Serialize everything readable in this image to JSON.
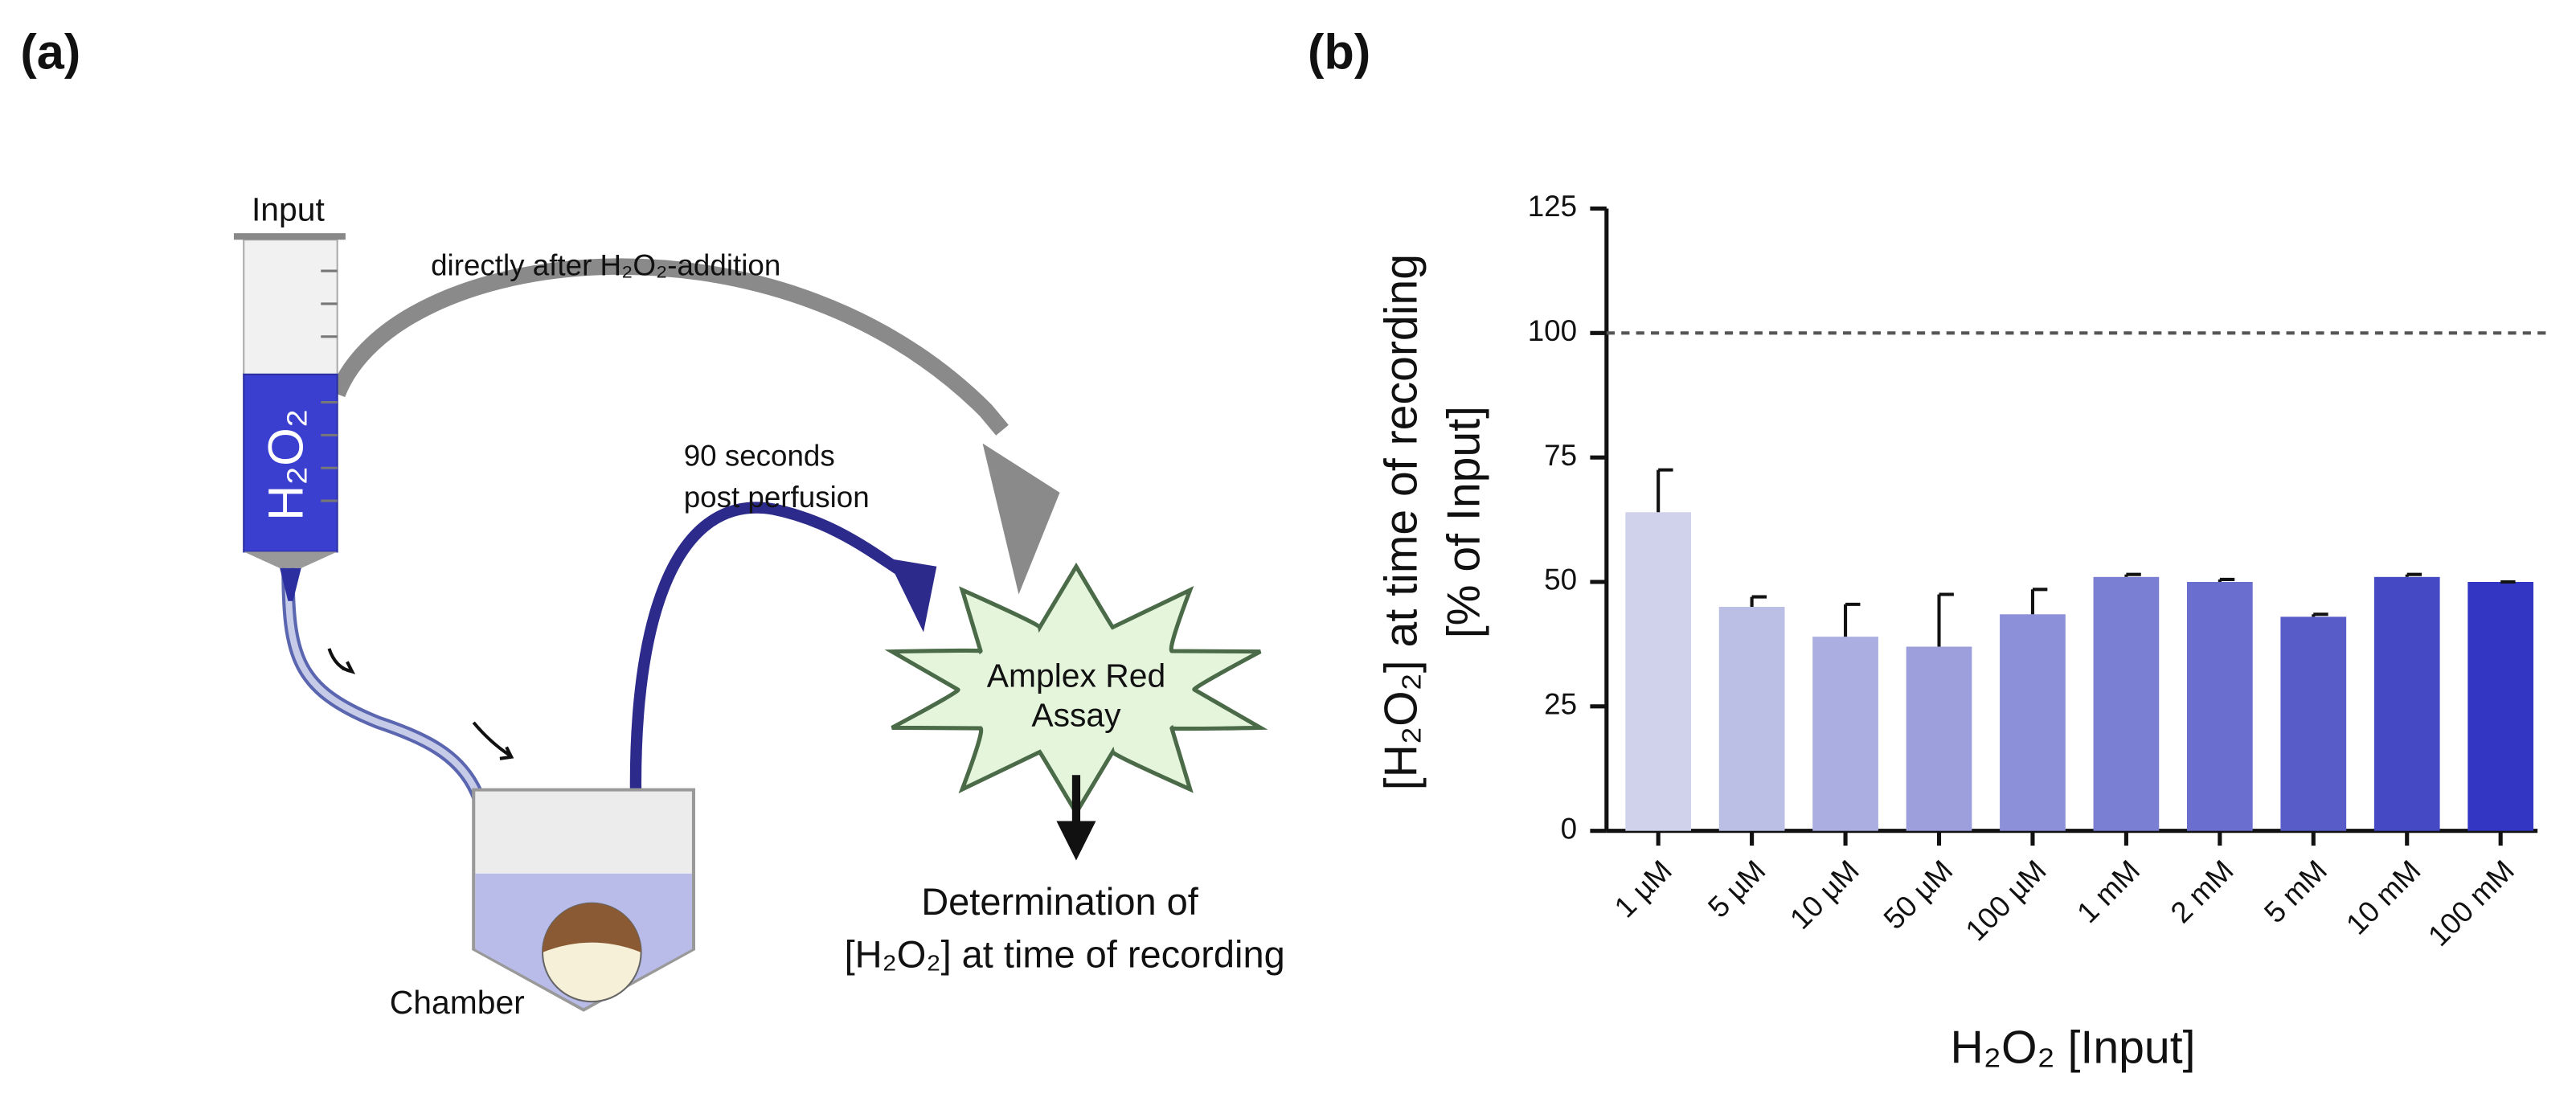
{
  "diagram": {
    "panel_label": "(a)",
    "input_label": "Input",
    "syringe_label": "H₂O₂",
    "direct_label": "directly after H₂O₂-addition",
    "perfusion_label": [
      "90 seconds",
      "post perfusion"
    ],
    "assay_label": [
      "Amplex Red",
      "Assay"
    ],
    "chamber_label": "Chamber",
    "result_label": [
      "Determination of",
      "[H₂O₂] at time of recording"
    ]
  },
  "chart_data": {
    "type": "bar",
    "panel_label": "(b)",
    "x_label": "H₂O₂ [Input]",
    "y_label": [
      "[H₂O₂] at time of recording",
      "[% of Input]"
    ],
    "categories": [
      "1 µM",
      "5 µM",
      "10 µM",
      "50 µM",
      "100 µM",
      "1 mM",
      "2 mM",
      "5 mM",
      "10 mM",
      "100 mM"
    ],
    "values": [
      64,
      45,
      39,
      37,
      43.5,
      51,
      50,
      43,
      51,
      50
    ],
    "errors": [
      8.5,
      2,
      6.5,
      10.5,
      5,
      0.5,
      0.5,
      0.5,
      0.5,
      0
    ],
    "colors": [
      "#cfd2ea",
      "#bbbee5",
      "#abaee0",
      "#9c9fdc",
      "#8c90d8",
      "#7b7fd3",
      "#6a6ece",
      "#585cc9",
      "#4549c4",
      "#3236c2"
    ],
    "reference_line": 100,
    "ylim": [
      0,
      125
    ],
    "yticks": [
      0,
      25,
      50,
      75,
      100,
      125
    ]
  }
}
